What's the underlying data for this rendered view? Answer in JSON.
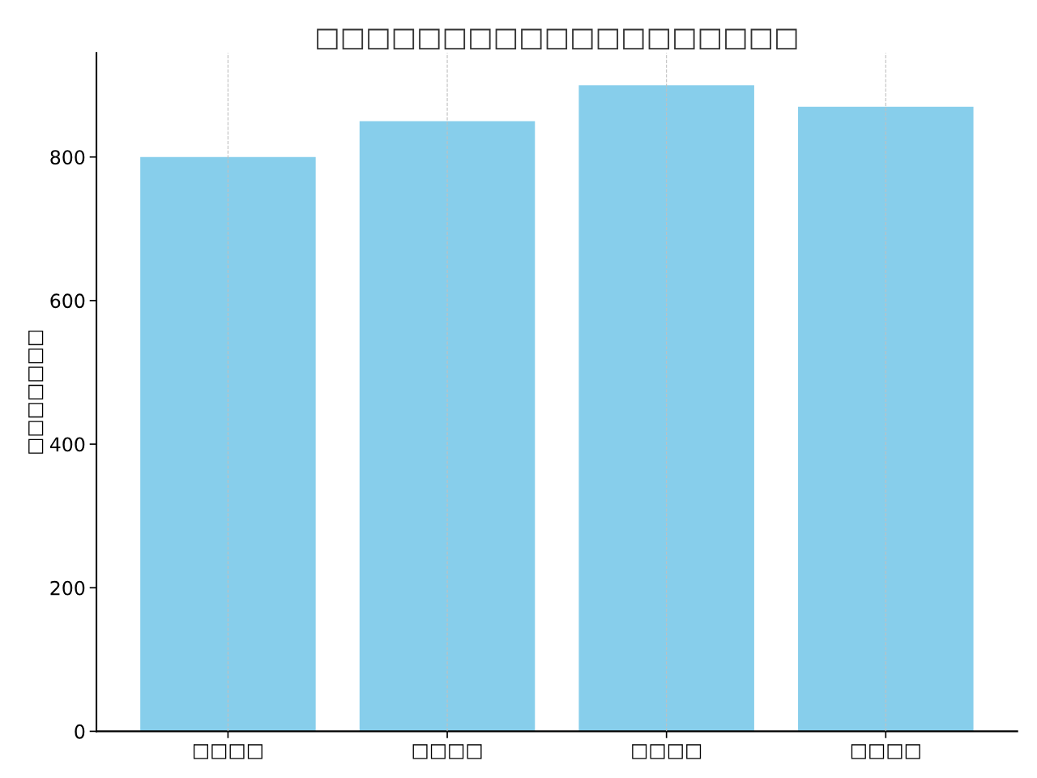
{
  "chart_data": {
    "type": "bar",
    "title": "□□□□□□□□□□□□□□□□□□□",
    "ylabel": "□□□□□□□",
    "categories": [
      "□□□□",
      "□□□□",
      "□□□□",
      "□□□□"
    ],
    "values": [
      800,
      850,
      900,
      870
    ],
    "color": "#87ceeb",
    "ylim": [
      0,
      945
    ],
    "yticks": [
      0,
      200,
      400,
      600,
      800
    ],
    "grid": "x"
  }
}
